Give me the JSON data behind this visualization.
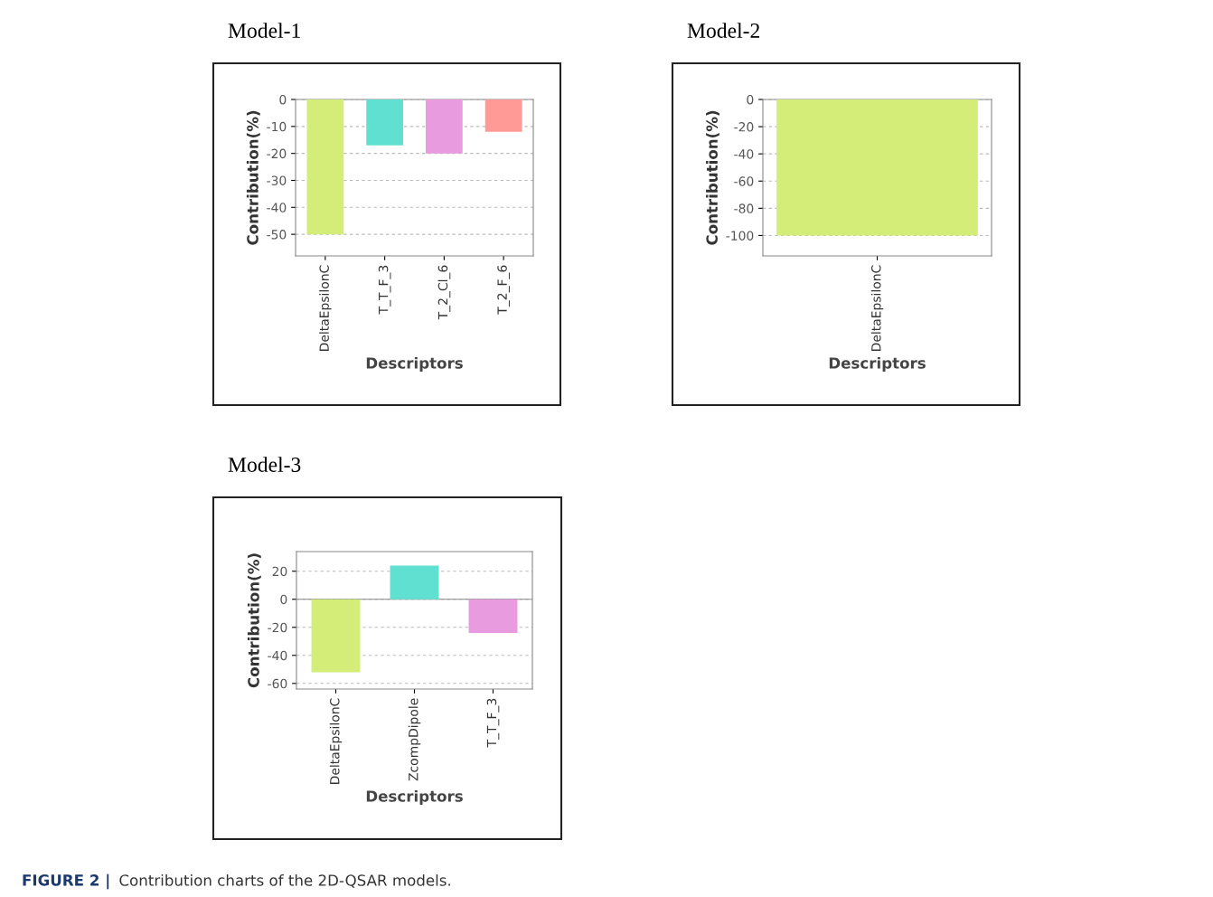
{
  "chart_data": [
    {
      "type": "bar",
      "title": "Model-1",
      "xlabel": "Descriptors",
      "ylabel": "Contribution(%)",
      "categories": [
        "DeltaEpsilonC",
        "T_T_F_3",
        "T_2_Cl_6",
        "T_2_F_6"
      ],
      "values": [
        -50,
        -17,
        -20,
        -12
      ],
      "colors": [
        "#d4ec78",
        "#5fe0d0",
        "#e99be0",
        "#ff9a96"
      ],
      "ylim": [
        -58,
        0
      ],
      "yticks": [
        0,
        -10,
        -20,
        -30,
        -40,
        -50
      ],
      "grid": "y"
    },
    {
      "type": "bar",
      "title": "Model-2",
      "xlabel": "Descriptors",
      "ylabel": "Contribution(%)",
      "categories": [
        "DeltaEpsilonC"
      ],
      "values": [
        -100
      ],
      "colors": [
        "#d4ec78"
      ],
      "ylim": [
        -115,
        0
      ],
      "yticks": [
        0,
        -20,
        -40,
        -60,
        -80,
        -100
      ],
      "grid": "y"
    },
    {
      "type": "bar",
      "title": "Model-3",
      "xlabel": "Descriptors",
      "ylabel": "Contribution(%)",
      "categories": [
        "DeltaEpsilonC",
        "ZcompDipole",
        "T_T_F_3"
      ],
      "values": [
        -52,
        24,
        -24
      ],
      "colors": [
        "#d4ec78",
        "#5fe0d0",
        "#e99be0"
      ],
      "ylim": [
        -64,
        34
      ],
      "yticks": [
        20,
        0,
        -20,
        -40,
        -60
      ],
      "grid": "y",
      "annotations": [
        "FIGURE 2 | Contribution charts of the 2D-QSAR models."
      ]
    }
  ]
}
